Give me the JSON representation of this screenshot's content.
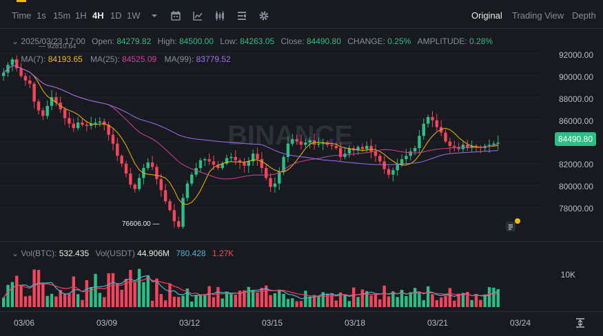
{
  "toolbar": {
    "intervals": [
      "Time",
      "1s",
      "15m",
      "1H",
      "4H",
      "1D",
      "1W"
    ],
    "active_interval": "4H",
    "views": [
      "Original",
      "Trading View",
      "Depth"
    ],
    "active_view": "Original",
    "icons": [
      "chevron-down-icon",
      "calendar-icon",
      "indicator-icon",
      "candle-type-icon",
      "layout-icon",
      "settings-icon"
    ]
  },
  "ohlc": {
    "date": "2025/03/23 17:00",
    "open_label": "Open:",
    "open": "84279.82",
    "high_label": "High:",
    "high": "84500.00",
    "low_label": "Low:",
    "low": "84263.05",
    "close_label": "Close:",
    "close": "84490.80",
    "change_label": "CHANGE:",
    "change": "0.25%",
    "amplitude_label": "AMPLITUDE:",
    "amplitude": "0.28%"
  },
  "ma": {
    "ma7_label": "MA(7):",
    "ma7": "84193.65",
    "ma25_label": "MA(25):",
    "ma25": "84525.09",
    "ma99_label": "MA(99):",
    "ma99": "83779.52"
  },
  "price_axis": [
    "92000.00",
    "90000.00",
    "88000.00",
    "86000.00",
    "82000.00",
    "80000.00",
    "78000.00"
  ],
  "current_price": "84490.80",
  "high_marker": "92810.64",
  "low_marker": "76606.00",
  "volume": {
    "label_btc": "Vol(BTC):",
    "vol_btc": "532.435",
    "label_usdt": "Vol(USDT)",
    "vol_usdt": "44.906M",
    "ma1": "780.428",
    "ma2": "1.27K",
    "axis_label": "10K"
  },
  "x_axis": [
    "03/06",
    "03/09",
    "03/12",
    "03/15",
    "03/18",
    "03/21",
    "03/24"
  ],
  "watermark": "BINANCE",
  "colors": {
    "up": "#2ebd85",
    "down": "#f6465d",
    "ma7": "#f0b90b",
    "ma25": "#d53f9e",
    "ma99": "#a070f0",
    "vol_ma": "#48b7d8"
  },
  "chart_data": {
    "type": "candlestick",
    "interval": "4H",
    "candles_close": [
      90800,
      91500,
      92000,
      91200,
      90500,
      90100,
      89800,
      88200,
      87400,
      86900,
      87800,
      88600,
      88100,
      87500,
      86700,
      86200,
      85800,
      86300,
      86100,
      86000,
      86200,
      86300,
      86400,
      86100,
      85200,
      84400,
      83300,
      82600,
      81700,
      80700,
      80300,
      81300,
      82200,
      82700,
      82300,
      81200,
      80200,
      79200,
      78400,
      77400,
      76900,
      79500,
      80800,
      81600,
      82200,
      82900,
      83000,
      82800,
      82500,
      82200,
      82600,
      83100,
      83200,
      82900,
      82700,
      82400,
      82800,
      83500,
      83000,
      82200,
      81300,
      80500,
      80800,
      81900,
      83200,
      84400,
      84800,
      84600,
      84300,
      84500,
      84700,
      84300,
      84400,
      84500,
      84300,
      84200,
      84000,
      83200,
      83500,
      84000,
      83800,
      84100,
      83900,
      84200,
      83700,
      83300,
      82800,
      82100,
      81600,
      82000,
      82500,
      83000,
      83300,
      83700,
      84000,
      85100,
      86200,
      86800,
      86500,
      85900,
      85400,
      84600,
      84200,
      84100,
      83900,
      84300,
      84000,
      84200,
      84100,
      84000,
      84200,
      84300,
      84400,
      84490
    ]
  }
}
